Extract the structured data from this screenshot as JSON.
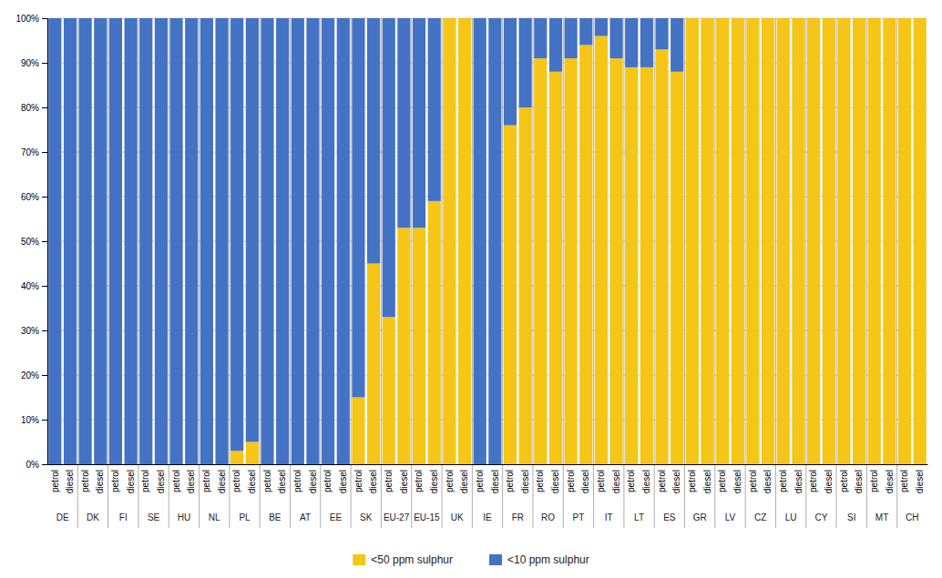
{
  "chart_data": {
    "type": "bar",
    "stacked": true,
    "grid": true,
    "legend": "bottom",
    "categories": [
      "petrol",
      "diesel",
      "petrol",
      "diesel",
      "petrol",
      "diesel",
      "petrol",
      "diesel",
      "petrol",
      "diesel",
      "petrol",
      "diesel",
      "petrol",
      "diesel",
      "petrol",
      "diesel",
      "petrol",
      "diesel",
      "petrol",
      "diesel",
      "petrol",
      "diesel",
      "petrol",
      "diesel",
      "petrol",
      "diesel",
      "petrol",
      "diesel",
      "petrol",
      "diesel",
      "petrol",
      "diesel",
      "petrol",
      "diesel",
      "petrol",
      "diesel",
      "petrol",
      "diesel",
      "petrol",
      "diesel",
      "petrol",
      "diesel",
      "petrol",
      "diesel",
      "petrol",
      "diesel",
      "petrol",
      "diesel",
      "petrol",
      "diesel",
      "petrol",
      "diesel",
      "petrol",
      "diesel",
      "petrol",
      "diesel",
      "petrol",
      "diesel"
    ],
    "groups": [
      "DE",
      "DE",
      "DK",
      "DK",
      "FI",
      "FI",
      "SE",
      "SE",
      "HU",
      "HU",
      "NL",
      "NL",
      "PL",
      "PL",
      "BE",
      "BE",
      "AT",
      "AT",
      "EE",
      "EE",
      "SK",
      "SK",
      "EU-27",
      "EU-27",
      "EU-15",
      "EU-15",
      "UK",
      "UK",
      "IE",
      "IE",
      "FR",
      "FR",
      "RO",
      "RO",
      "PT",
      "PT",
      "IT",
      "IT",
      "LT",
      "LT",
      "ES",
      "ES",
      "GR",
      "GR",
      "LV",
      "LV",
      "CZ",
      "CZ",
      "LU",
      "LU",
      "CY",
      "CY",
      "SI",
      "SI",
      "MT",
      "MT",
      "CH",
      "CH"
    ],
    "series": [
      {
        "name": "<50 ppm sulphur",
        "color": "#F5C518",
        "values": [
          0,
          0,
          0,
          0,
          0,
          0,
          0,
          0,
          0,
          0,
          0,
          0,
          3,
          5,
          0,
          0,
          0,
          0,
          0,
          0,
          15,
          45,
          33,
          53,
          53,
          59,
          100,
          100,
          0,
          0,
          76,
          80,
          91,
          88,
          91,
          94,
          96,
          91,
          89,
          89,
          93,
          88,
          100,
          100,
          100,
          100,
          100,
          100,
          100,
          100,
          100,
          100,
          100,
          100,
          100,
          100,
          100,
          100
        ]
      },
      {
        "name": "<10 ppm sulphur",
        "color": "#4472C4",
        "values": [
          100,
          100,
          100,
          100,
          100,
          100,
          100,
          100,
          100,
          100,
          100,
          100,
          97,
          95,
          100,
          100,
          100,
          100,
          100,
          100,
          85,
          55,
          67,
          47,
          47,
          41,
          0,
          0,
          100,
          100,
          24,
          20,
          9,
          12,
          9,
          6,
          4,
          9,
          11,
          11,
          7,
          12,
          0,
          0,
          0,
          0,
          0,
          0,
          0,
          0,
          0,
          0,
          0,
          0,
          0,
          0,
          0,
          0
        ]
      }
    ],
    "ylim": [
      0,
      100
    ],
    "yticks": [
      {
        "value": 0,
        "label": "0%"
      },
      {
        "value": 10,
        "label": "10%"
      },
      {
        "value": 20,
        "label": "20%"
      },
      {
        "value": 30,
        "label": "30%"
      },
      {
        "value": 40,
        "label": "40%"
      },
      {
        "value": 50,
        "label": "50%"
      },
      {
        "value": 60,
        "label": "60%"
      },
      {
        "value": 70,
        "label": "70%"
      },
      {
        "value": 80,
        "label": "80%"
      },
      {
        "value": 90,
        "label": "90%"
      },
      {
        "value": 100,
        "label": "100%"
      }
    ]
  }
}
